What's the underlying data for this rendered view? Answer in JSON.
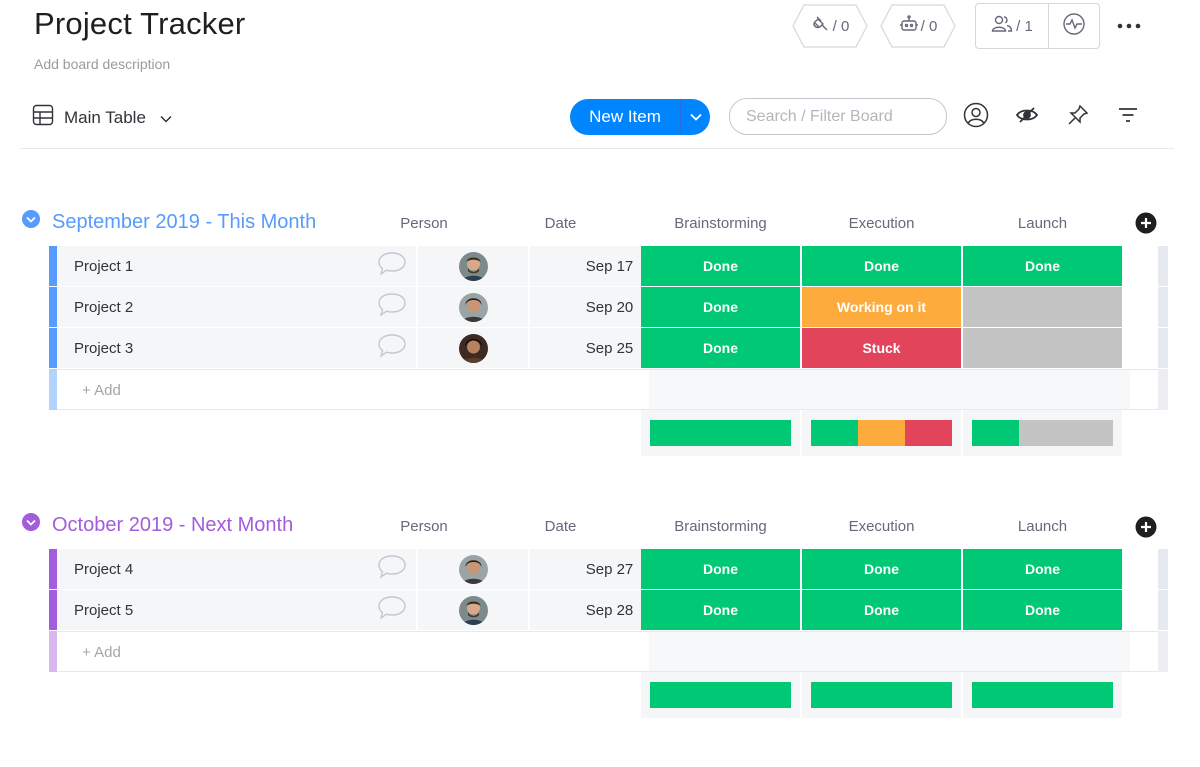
{
  "header": {
    "title": "Project Tracker",
    "description": "Add board description",
    "integrations_count": "/ 0",
    "automations_count": "/ 0",
    "members_count": "/ 1"
  },
  "toolbar": {
    "view_label": "Main Table",
    "new_item_label": "New Item",
    "search_placeholder": "Search / Filter Board"
  },
  "colors": {
    "done": "#00c875",
    "working": "#fdab3d",
    "stuck": "#e2445c",
    "empty": "#c4c4c4",
    "accent": "#0085ff",
    "group1": "#579bfc",
    "group2": "#a25ddc"
  },
  "columns": [
    "Person",
    "Date",
    "Brainstorming",
    "Execution",
    "Launch"
  ],
  "groups": [
    {
      "title": "September 2019 - This Month",
      "color": "#579bfc",
      "light_color": "#b3d3ff",
      "add_label": "+ Add",
      "rows": [
        {
          "name": "Project 1",
          "date": "Sep 17",
          "statuses": [
            "Done",
            "Done",
            "Done"
          ]
        },
        {
          "name": "Project 2",
          "date": "Sep 20",
          "statuses": [
            "Done",
            "Working on it",
            ""
          ]
        },
        {
          "name": "Project 3",
          "date": "Sep 25",
          "statuses": [
            "Done",
            "Stuck",
            ""
          ]
        }
      ],
      "summary": [
        [
          {
            "status": "done",
            "fraction": 1
          }
        ],
        [
          {
            "status": "done",
            "fraction": 0.3333
          },
          {
            "status": "working",
            "fraction": 0.3333
          },
          {
            "status": "stuck",
            "fraction": 0.3334
          }
        ],
        [
          {
            "status": "done",
            "fraction": 0.3333
          },
          {
            "status": "empty",
            "fraction": 0.6667
          }
        ]
      ]
    },
    {
      "title": "October 2019 - Next Month",
      "color": "#a25ddc",
      "light_color": "#d9b8f0",
      "add_label": "+ Add",
      "rows": [
        {
          "name": "Project 4",
          "date": "Sep 27",
          "statuses": [
            "Done",
            "Done",
            "Done"
          ]
        },
        {
          "name": "Project 5",
          "date": "Sep 28",
          "statuses": [
            "Done",
            "Done",
            "Done"
          ]
        }
      ],
      "summary": [
        [
          {
            "status": "done",
            "fraction": 1
          }
        ],
        [
          {
            "status": "done",
            "fraction": 1
          }
        ],
        [
          {
            "status": "done",
            "fraction": 1
          }
        ]
      ]
    }
  ]
}
